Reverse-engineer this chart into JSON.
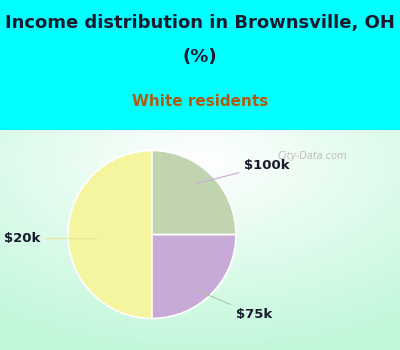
{
  "title_line1": "Income distribution in Brownsville, OH",
  "title_line2": "(%)",
  "subtitle": "White residents",
  "slices": [
    {
      "label": "$20k",
      "value": 50,
      "color": "#f5f5a0"
    },
    {
      "label": "$100k",
      "value": 25,
      "color": "#c8aad8"
    },
    {
      "label": "$75k",
      "value": 25,
      "color": "#c0d4b0"
    }
  ],
  "title_color": "#1a1a2e",
  "subtitle_color": "#b05a10",
  "title_fontsize": 13,
  "subtitle_fontsize": 11,
  "bg_color_top": "#00ffff",
  "label_color": "#1a1a2e",
  "label_fontsize": 9.5,
  "startangle": 90,
  "watermark": "City-Data.com"
}
